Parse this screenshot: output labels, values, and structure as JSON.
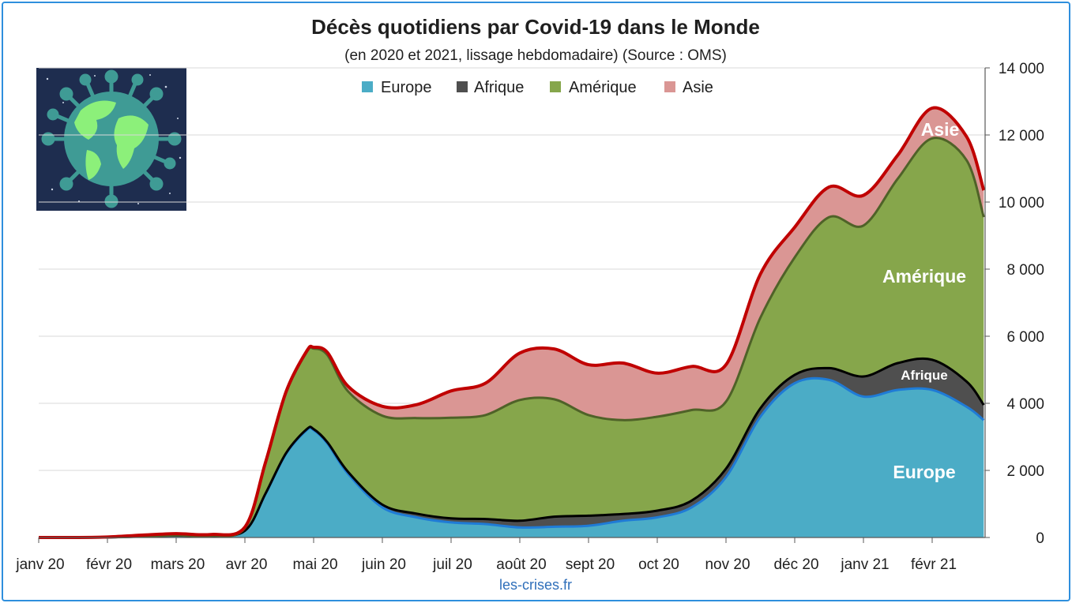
{
  "chart_data": {
    "type": "area",
    "stacked": true,
    "title": "Décès quotidiens par Covid-19 dans le Monde",
    "subtitle": "(en 2020 et 2021, lissage hebdomadaire) (Source : OMS)",
    "source": "les-crises.fr",
    "x_tick_labels": [
      "janv 20",
      "févr 20",
      "mars 20",
      "avr 20",
      "mai 20",
      "juin 20",
      "juil 20",
      "août 20",
      "sept 20",
      "oct 20",
      "nov 20",
      "déc 20",
      "janv 21",
      "févr 21"
    ],
    "y_tick_labels": [
      "0",
      "2 000",
      "4 000",
      "6 000",
      "8 000",
      "10 000",
      "12 000",
      "14 000"
    ],
    "ylim": [
      0,
      14000
    ],
    "y_axis_side": "right",
    "grid": true,
    "legend_position": "top",
    "x_month_index": [
      0,
      0.5,
      1,
      1.5,
      2,
      2.5,
      3,
      3.3,
      3.6,
      3.9,
      4,
      4.2,
      4.5,
      5,
      5.5,
      6,
      6.5,
      7,
      7.5,
      8,
      8.5,
      9,
      9.5,
      10,
      10.5,
      11,
      11.5,
      12,
      12.5,
      13,
      13.5,
      13.75
    ],
    "series": [
      {
        "name": "Europe",
        "color": "#4bacc6",
        "line_color": "#1f7bd6",
        "values": [
          0,
          0,
          5,
          30,
          60,
          40,
          200,
          1300,
          2500,
          3200,
          3200,
          2800,
          1900,
          900,
          600,
          450,
          400,
          300,
          320,
          350,
          500,
          600,
          900,
          1800,
          3600,
          4600,
          4700,
          4200,
          4400,
          4400,
          3900,
          3500
        ]
      },
      {
        "name": "Afrique",
        "color": "#4f4f4f",
        "line_color": "#000000",
        "values": [
          0,
          0,
          0,
          0,
          0,
          0,
          0,
          10,
          20,
          30,
          30,
          40,
          60,
          80,
          110,
          120,
          150,
          200,
          300,
          300,
          200,
          200,
          200,
          250,
          250,
          250,
          350,
          600,
          800,
          900,
          750,
          450
        ]
      },
      {
        "name": "Amérique",
        "color": "#86a64b",
        "line_color": "#4f6228",
        "values": [
          0,
          0,
          0,
          0,
          5,
          10,
          80,
          900,
          1800,
          2300,
          2400,
          2600,
          2400,
          2650,
          2850,
          3000,
          3100,
          3600,
          3500,
          3000,
          2800,
          2800,
          2700,
          2000,
          2700,
          3500,
          4500,
          4500,
          5500,
          6600,
          6600,
          5600
        ]
      },
      {
        "name": "Asie",
        "color": "#da9694",
        "line_color": "#c00000",
        "values": [
          0,
          0,
          10,
          40,
          50,
          40,
          30,
          30,
          30,
          30,
          40,
          80,
          150,
          280,
          400,
          800,
          950,
          1400,
          1500,
          1500,
          1700,
          1300,
          1300,
          1100,
          1300,
          900,
          900,
          900,
          700,
          900,
          700,
          800
        ]
      }
    ],
    "in_chart_labels": {
      "europe": "Europe",
      "afrique": "Afrique",
      "amerique": "Amérique",
      "asie": "Asie"
    }
  }
}
